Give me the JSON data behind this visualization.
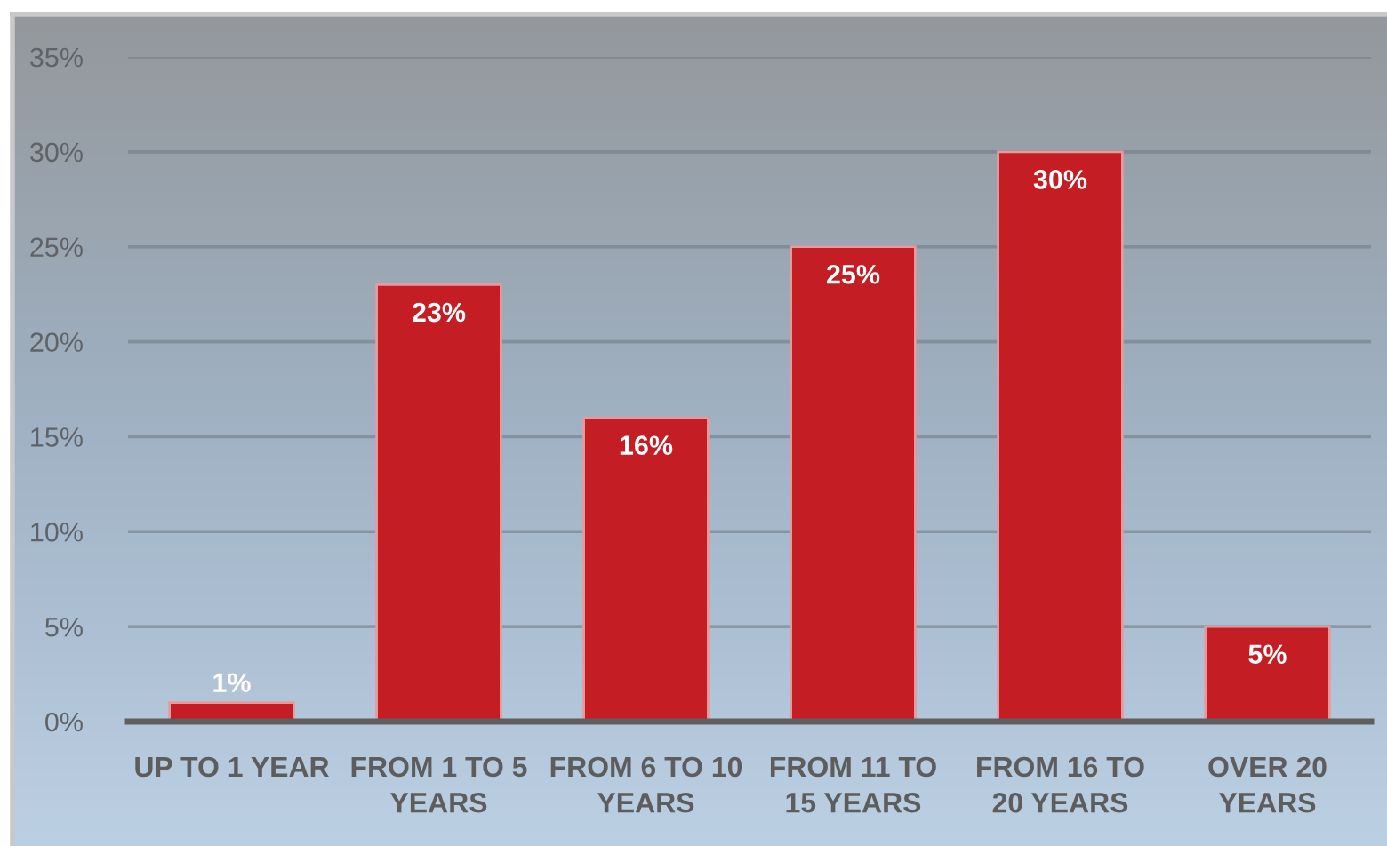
{
  "chart_data": {
    "type": "bar",
    "categories": [
      "UP TO 1 YEAR",
      "FROM 1 TO 5 YEARS",
      "FROM 6 TO 10 YEARS",
      "FROM 11 TO 15 YEARS",
      "FROM 16 TO 20 YEARS",
      "OVER 20 YEARS"
    ],
    "values": [
      1,
      23,
      16,
      25,
      30,
      5
    ],
    "color": "#c41e24",
    "value_labels": [
      "1%",
      "23%",
      "16%",
      "25%",
      "30%",
      "5%"
    ],
    "ylim": [
      0,
      35
    ],
    "yticks": [
      {
        "value": 0,
        "label": "0%"
      },
      {
        "value": 5,
        "label": "5%"
      },
      {
        "value": 10,
        "label": "10%"
      },
      {
        "value": 15,
        "label": "15%"
      },
      {
        "value": 20,
        "label": "20%"
      },
      {
        "value": 25,
        "label": "25%"
      },
      {
        "value": 30,
        "label": "30%"
      },
      {
        "value": 35,
        "label": "35%"
      }
    ],
    "grid": "y"
  }
}
